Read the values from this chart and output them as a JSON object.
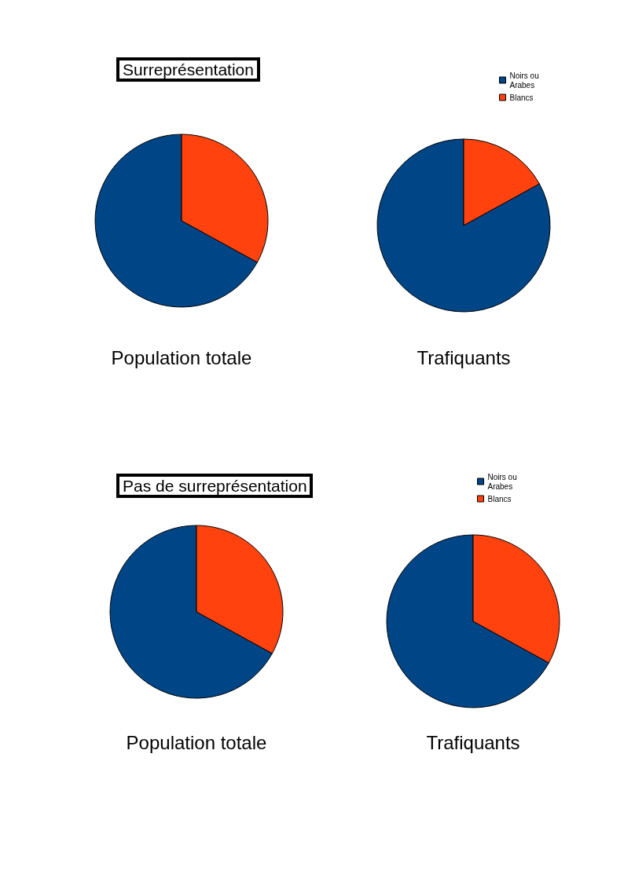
{
  "chart_data": [
    {
      "type": "pie",
      "title": "Surreprésentation",
      "categories": [
        "Noirs ou Arabes",
        "Blancs"
      ],
      "colors": [
        "#004586",
        "#ff420e"
      ],
      "legend": "top right",
      "series": [
        {
          "name": "Population totale",
          "values": [
            67,
            33
          ]
        },
        {
          "name": "Trafiquants",
          "values": [
            83,
            17
          ]
        }
      ]
    },
    {
      "type": "pie",
      "title": "Pas de surreprésentation",
      "categories": [
        "Noirs ou Arabes",
        "Blancs"
      ],
      "colors": [
        "#004586",
        "#ff420e"
      ],
      "legend": "top right",
      "series": [
        {
          "name": "Population totale",
          "values": [
            67,
            33
          ]
        },
        {
          "name": "Trafiquants",
          "values": [
            67,
            33
          ]
        }
      ]
    }
  ]
}
